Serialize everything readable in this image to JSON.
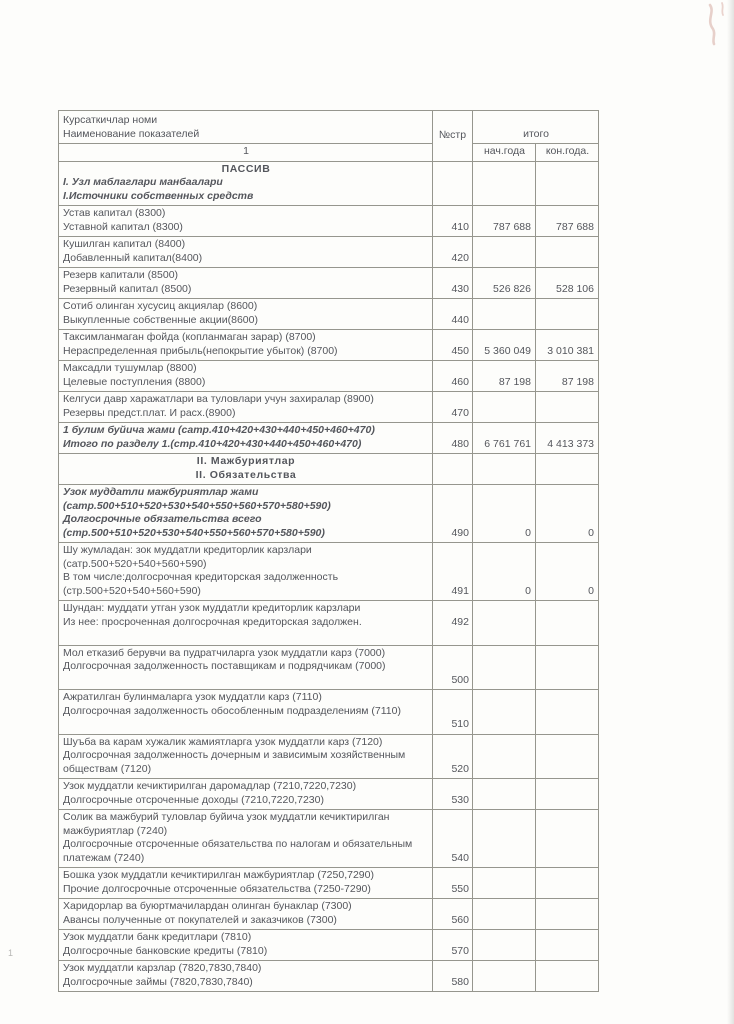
{
  "colors": {
    "paper": "#fdfdfb",
    "ink": "#54565c",
    "table_border": "#96968e",
    "pen_mark": "#d2a49b"
  },
  "artifacts": {
    "stray_mark": "1"
  },
  "table": {
    "header": {
      "name_line1": "Курсаткичлар номи",
      "name_line2": "Наименование показателей",
      "code": "№стр",
      "total": "итого",
      "col_number": "1",
      "begin": "нач.года",
      "end": "кон.года."
    },
    "rows": [
      {
        "lines": [
          {
            "t": "ПАССИВ",
            "s": "c"
          },
          {
            "t": "I. Узл  маблаглари  манбаалари",
            "s": "bi"
          },
          {
            "t": "I.Источники  собственных  средств",
            "s": "bi"
          }
        ],
        "code": "",
        "begin": "",
        "end": ""
      },
      {
        "lines": [
          "Устав капитал (8300)",
          "Уставной   капитал (8300)"
        ],
        "code": "410",
        "begin": "787 688",
        "end": "787 688"
      },
      {
        "lines": [
          "Кушилган  капитал (8400)",
          "Добавленный  капитал(8400)"
        ],
        "code": "420",
        "begin": "",
        "end": ""
      },
      {
        "lines": [
          "Резерв капитали  (8500)",
          "Резервный  капитал (8500)"
        ],
        "code": "430",
        "begin": "526 826",
        "end": "528 106"
      },
      {
        "lines": [
          "Сотиб  олинган хусусиц акциялар (8600)",
          "Выкупленные  собственные акции(8600)"
        ],
        "code": "440",
        "begin": "",
        "end": ""
      },
      {
        "lines": [
          "Таксимланмаган фойда (копланмаган зарар)  (8700)",
          "Нераспределенная  прибыль(непокрытие убыток) (8700)"
        ],
        "code": "450",
        "begin": "5 360 049",
        "end": "3 010 381"
      },
      {
        "lines": [
          "Максадли тушумлар (8800)",
          "Целевые  поступления (8800)"
        ],
        "code": "460",
        "begin": "87 198",
        "end": "87 198"
      },
      {
        "lines": [
          "Келгуси давр харажатлари ва туловлари учун захиралар (8900)",
          "Резервы предст.плат. И расх.(8900)"
        ],
        "code": "470",
        "begin": "",
        "end": ""
      },
      {
        "style": "bi",
        "lines": [
          "1 булим буйича жами (сатр.410+420+430+440+450+460+470)",
          "Итого  по  разделу  1.(стр.410+420+430+440+450+460+470)"
        ],
        "code": "480",
        "begin": "6 761 761",
        "end": "4 413 373"
      },
      {
        "lines": [
          {
            "t": "II. Мажбуриятлар",
            "s": "c"
          },
          {
            "t": "II. Обязательства",
            "s": "c"
          }
        ],
        "code": "",
        "begin": "",
        "end": ""
      },
      {
        "style": "bi",
        "lines": [
          "Узок  муддатли  мажбуриятлар жами",
          "(сатр.500+510+520+530+540+550+560+570+580+590)",
          "Долгосрочные обязательства всего",
          "(стр.500+510+520+530+540+550+560+570+580+590)"
        ],
        "code": "490",
        "begin": "0",
        "end": "0"
      },
      {
        "lines": [
          "Шу  жумладан: зок муддатли кредиторлик карзлари",
          "(сатр.500+520+540+560+590)",
          "В том числе:долгосрочная  кредиторская задолженность",
          "(стр.500+520+540+560+590)"
        ],
        "code": "491",
        "begin": "0",
        "end": "0"
      },
      {
        "codeMid": true,
        "lines": [
          "Шундан: муддати утган узок муддатли кредиторлик карзлари",
          "Из нее: просроченная долгосрочная кредиторская задолжен.",
          ""
        ],
        "code": "492",
        "begin": "",
        "end": ""
      },
      {
        "lines": [
          "Мол етказиб берувчи ва пудратчиларга узок муддатли карз (7000)",
          "Долгосрочная  задолженность поставщикам и подрядчикам (7000)",
          ""
        ],
        "code": "500",
        "begin": "",
        "end": ""
      },
      {
        "lines": [
          "Ажратилган булинмаларга узок муддатли карз (7110)",
          "Долгосрочная  задолженность обособленным подразделениям (7110)",
          ""
        ],
        "code": "510",
        "begin": "",
        "end": ""
      },
      {
        "lines": [
          "Шуъба ва карам хужалик жамиятларга узок муддатли карз (7120)",
          "Долгосрочная  задолженность дочерным и зависимым хозяйственным обществам (7120)"
        ],
        "code": "520",
        "begin": "",
        "end": ""
      },
      {
        "lines": [
          "Узок муддатли кечиктирилган даромадлар (7210,7220,7230)",
          "Долгосрочные отсроченные доходы (7210,7220,7230)"
        ],
        "code": "530",
        "begin": "",
        "end": ""
      },
      {
        "lines": [
          "Солик ва мажбурий туловлар буйича узок муддатли кечиктирилган мажбуриятлар (7240)",
          "Долгосрочные отсроченные обязательства по налогам и обязательным платежам (7240)"
        ],
        "code": "540",
        "begin": "",
        "end": ""
      },
      {
        "lines": [
          "Бошка узок муддатли кечиктирилган мажбуриятлар (7250,7290)",
          "Прочие долгосрочные отсроченные обязательства (7250-7290)"
        ],
        "code": "550",
        "begin": "",
        "end": ""
      },
      {
        "lines": [
          "Харидорлар ва буюртмачилардан олинган бунаклар (7300)",
          "Авансы полученные от покупателей и заказчиков (7300)"
        ],
        "code": "560",
        "begin": "",
        "end": ""
      },
      {
        "lines": [
          "Узок муддатли банк кредитлари (7810)",
          "Долгосрочные банковские кредиты (7810)"
        ],
        "code": "570",
        "begin": "",
        "end": ""
      },
      {
        "lines": [
          "Узок муддатли карзлар (7820,7830,7840)",
          "Долгосрочные займы (7820,7830,7840)"
        ],
        "code": "580",
        "begin": "",
        "end": ""
      }
    ]
  }
}
